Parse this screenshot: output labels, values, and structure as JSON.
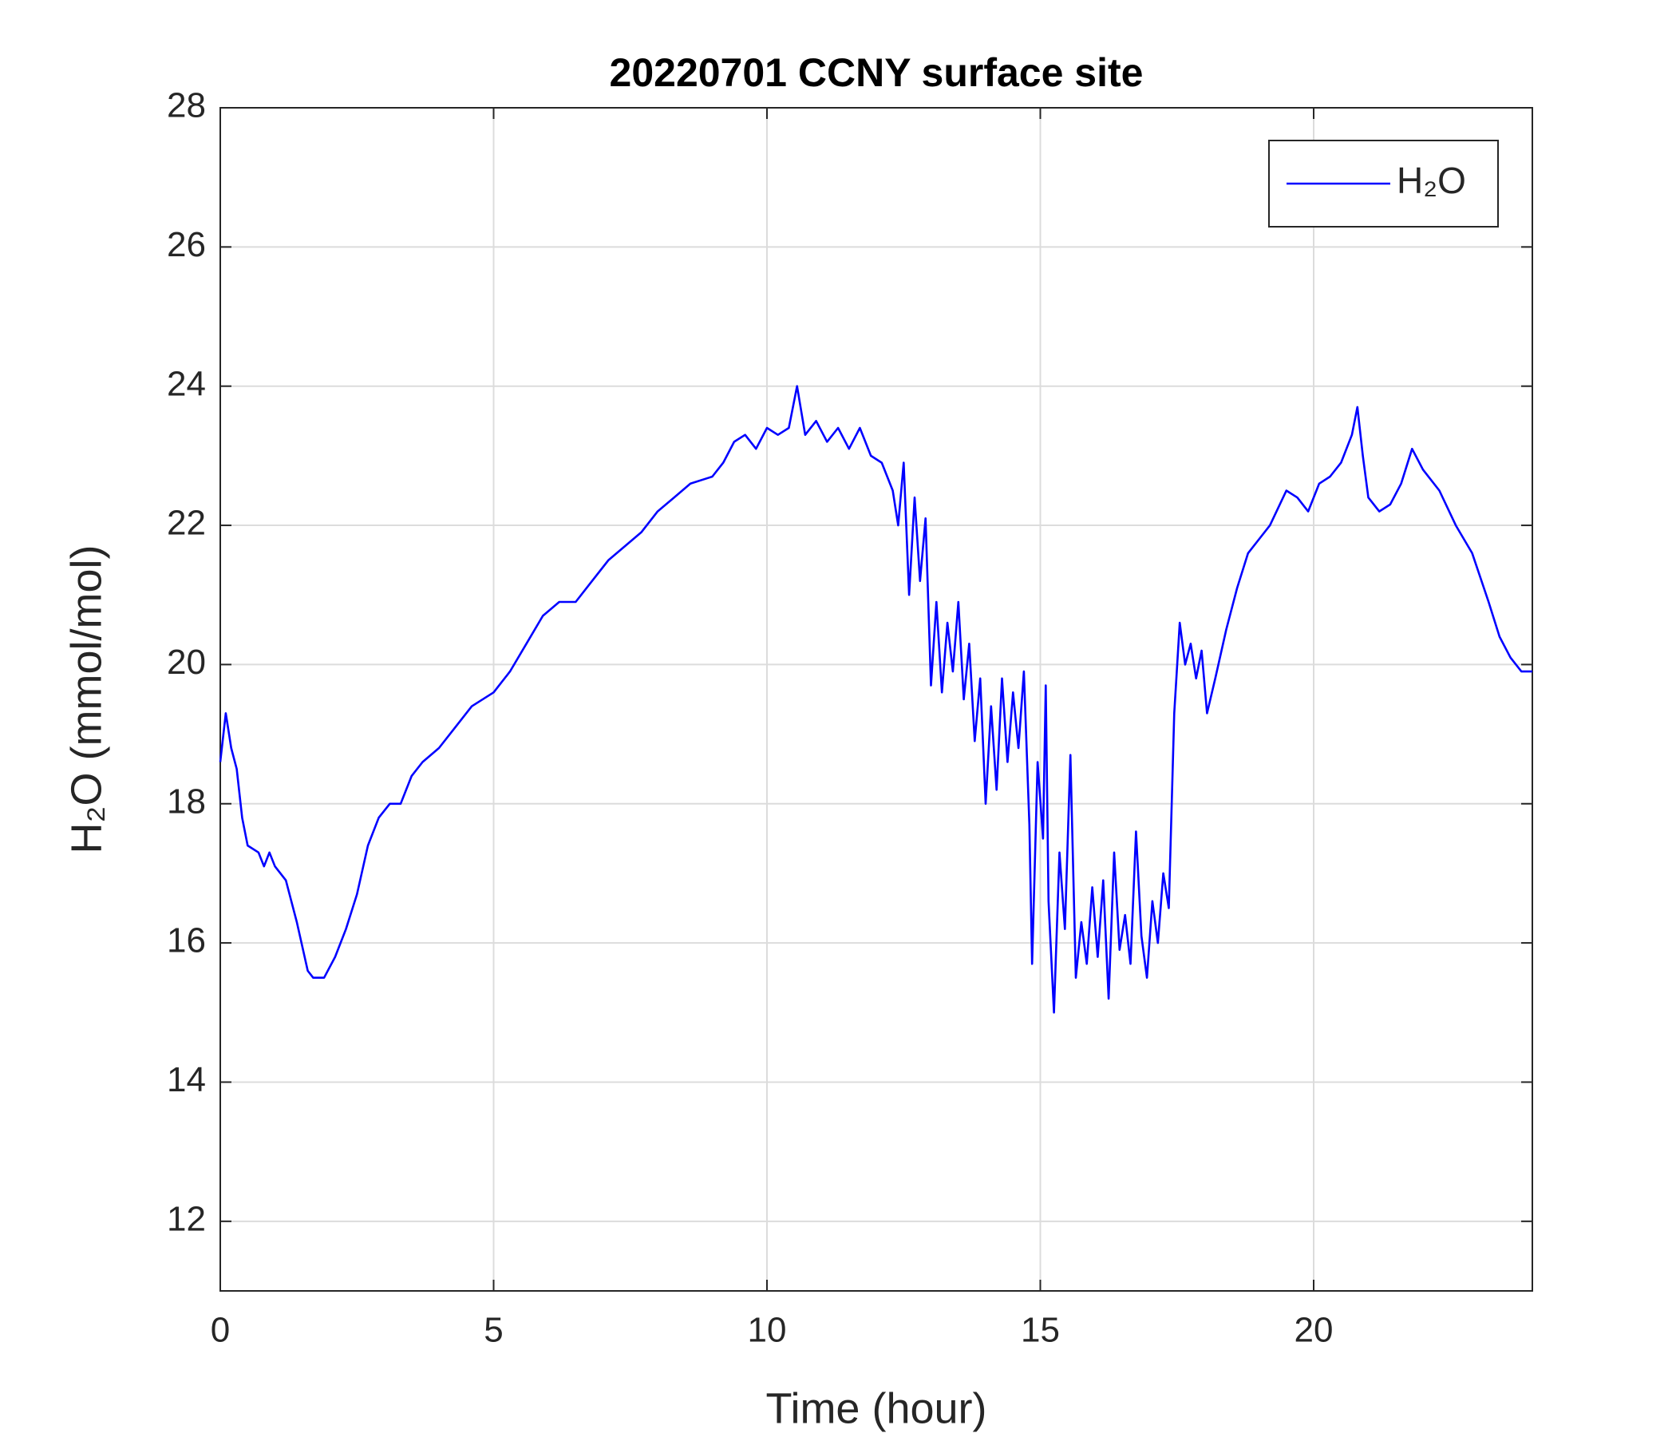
{
  "chart_data": {
    "type": "line",
    "title": "20220701 CCNY surface site",
    "xlabel": "Time (hour)",
    "ylabel": "H₂O (mmol/mol)",
    "xlim": [
      0,
      24
    ],
    "xticks": [
      0,
      5,
      10,
      15,
      20
    ],
    "ylim": [
      11,
      28
    ],
    "yticks": [
      12,
      14,
      16,
      18,
      20,
      22,
      24,
      26,
      28
    ],
    "grid": true,
    "legend": "northeast",
    "x": [
      0,
      0.1,
      0.2,
      0.3,
      0.4,
      0.5,
      0.7,
      0.8,
      0.9,
      1.0,
      1.2,
      1.4,
      1.6,
      1.7,
      1.9,
      2.1,
      2.3,
      2.5,
      2.7,
      2.9,
      3.1,
      3.3,
      3.5,
      3.7,
      4.0,
      4.3,
      4.6,
      5.0,
      5.3,
      5.6,
      5.9,
      6.2,
      6.5,
      6.8,
      7.1,
      7.4,
      7.7,
      8.0,
      8.3,
      8.6,
      9.0,
      9.2,
      9.4,
      9.6,
      9.8,
      10.0,
      10.2,
      10.4,
      10.55,
      10.7,
      10.9,
      11.1,
      11.3,
      11.5,
      11.7,
      11.9,
      12.1,
      12.3,
      12.4,
      12.5,
      12.6,
      12.7,
      12.8,
      12.9,
      13.0,
      13.1,
      13.2,
      13.3,
      13.4,
      13.5,
      13.6,
      13.7,
      13.8,
      13.9,
      14.0,
      14.1,
      14.2,
      14.3,
      14.4,
      14.5,
      14.6,
      14.7,
      14.8,
      14.85,
      14.95,
      15.05,
      15.1,
      15.15,
      15.25,
      15.35,
      15.45,
      15.55,
      15.65,
      15.75,
      15.85,
      15.95,
      16.05,
      16.15,
      16.25,
      16.35,
      16.45,
      16.55,
      16.65,
      16.75,
      16.85,
      16.95,
      17.05,
      17.15,
      17.25,
      17.35,
      17.45,
      17.55,
      17.65,
      17.75,
      17.85,
      17.95,
      18.05,
      18.2,
      18.4,
      18.6,
      18.8,
      19.0,
      19.2,
      19.5,
      19.7,
      19.9,
      20.1,
      20.3,
      20.5,
      20.7,
      20.8,
      20.9,
      21.0,
      21.2,
      21.4,
      21.6,
      21.8,
      22.0,
      22.3,
      22.6,
      22.9,
      23.2,
      23.4,
      23.6,
      23.8,
      24.0
    ],
    "series": [
      {
        "name": "H₂O",
        "color": "#0000ff",
        "values": [
          18.6,
          19.3,
          18.8,
          18.5,
          17.8,
          17.4,
          17.3,
          17.1,
          17.3,
          17.1,
          16.9,
          16.3,
          15.6,
          15.5,
          15.5,
          15.8,
          16.2,
          16.7,
          17.4,
          17.8,
          18.0,
          18.0,
          18.4,
          18.6,
          18.8,
          19.1,
          19.4,
          19.6,
          19.9,
          20.3,
          20.7,
          20.9,
          20.9,
          21.2,
          21.5,
          21.7,
          21.9,
          22.2,
          22.4,
          22.6,
          22.7,
          22.9,
          23.2,
          23.3,
          23.1,
          23.4,
          23.3,
          23.4,
          24.0,
          23.3,
          23.5,
          23.2,
          23.4,
          23.1,
          23.4,
          23.0,
          22.9,
          22.5,
          22.0,
          22.9,
          21.0,
          22.4,
          21.2,
          22.1,
          19.7,
          20.9,
          19.6,
          20.6,
          19.9,
          20.9,
          19.5,
          20.3,
          18.9,
          19.8,
          18.0,
          19.4,
          18.2,
          19.8,
          18.6,
          19.6,
          18.8,
          19.9,
          17.7,
          15.7,
          18.6,
          17.5,
          19.7,
          16.6,
          15.0,
          17.3,
          16.2,
          18.7,
          15.5,
          16.3,
          15.7,
          16.8,
          15.8,
          16.9,
          15.2,
          17.3,
          15.9,
          16.4,
          15.7,
          17.6,
          16.1,
          15.5,
          16.6,
          16.0,
          17.0,
          16.5,
          19.3,
          20.6,
          20.0,
          20.3,
          19.8,
          20.2,
          19.3,
          19.8,
          20.5,
          21.1,
          21.6,
          21.8,
          22.0,
          22.5,
          22.4,
          22.2,
          22.6,
          22.7,
          22.9,
          23.3,
          23.7,
          23.0,
          22.4,
          22.2,
          22.3,
          22.6,
          23.1,
          22.8,
          22.5,
          22.0,
          21.6,
          20.9,
          20.4,
          20.1,
          19.9,
          19.9
        ]
      }
    ]
  }
}
